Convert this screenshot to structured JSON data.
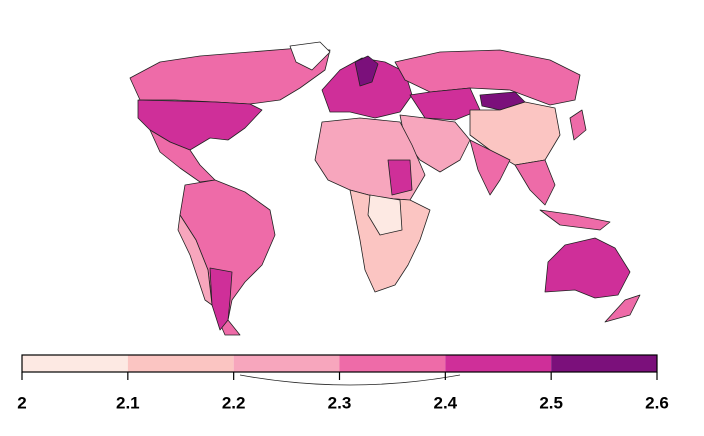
{
  "legend": {
    "ticks": [
      2,
      2.1,
      2.2,
      2.3,
      2.4,
      2.5,
      2.6
    ],
    "colors": [
      "#fde9e3",
      "#fbc5c2",
      "#f7a6bd",
      "#ee6ba8",
      "#cf2f99",
      "#7b107b"
    ]
  }
}
